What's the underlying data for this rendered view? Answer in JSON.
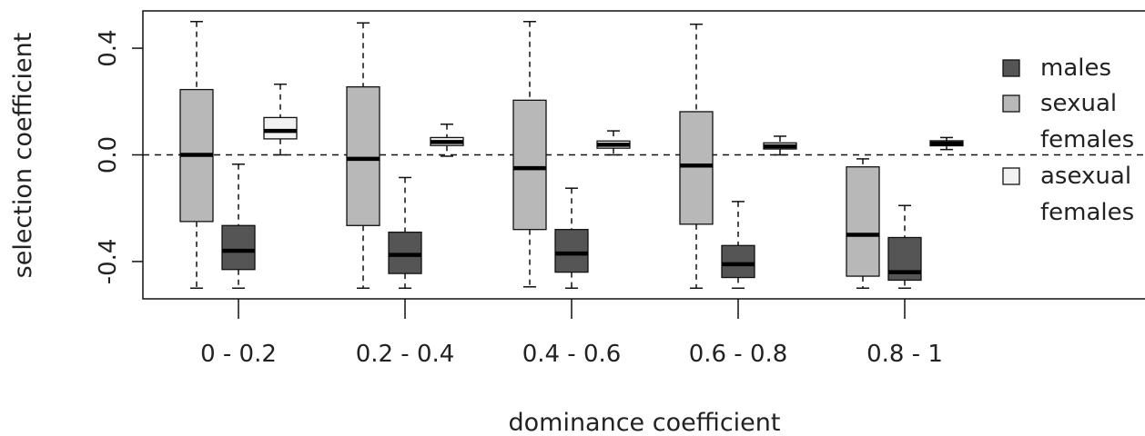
{
  "chart_data": {
    "type": "boxplot",
    "title": "",
    "xlabel": "dominance coefficient",
    "ylabel": "selection coefficient",
    "ylim": [
      -0.54,
      0.54
    ],
    "yticks": [
      {
        "value": 0.4,
        "label": "0.4"
      },
      {
        "value": 0.0,
        "label": "0.0"
      },
      {
        "value": -0.4,
        "label": "-0.4"
      }
    ],
    "reference_line": 0,
    "categories": [
      "0 - 0.2",
      "0.2 - 0.4",
      "0.4 - 0.6",
      "0.6 - 0.8",
      "0.8 - 1"
    ],
    "legend": {
      "position": "right",
      "entries": [
        {
          "key": "sexual_females",
          "lines": [
            "sexual",
            "females"
          ]
        },
        {
          "key": "males",
          "lines": [
            "males"
          ]
        },
        {
          "key": "asexual_females",
          "lines": [
            "asexual",
            "females"
          ]
        }
      ]
    },
    "series": [
      {
        "key": "sexual_females",
        "color": "#b8b8b8",
        "boxes": [
          {
            "whisker_low": -0.5,
            "q1": -0.25,
            "median": 0.0,
            "q3": 0.245,
            "whisker_high": 0.5
          },
          {
            "whisker_low": -0.5,
            "q1": -0.265,
            "median": -0.015,
            "q3": 0.255,
            "whisker_high": 0.495
          },
          {
            "whisker_low": -0.495,
            "q1": -0.28,
            "median": -0.05,
            "q3": 0.205,
            "whisker_high": 0.5
          },
          {
            "whisker_low": -0.5,
            "q1": -0.26,
            "median": -0.04,
            "q3": 0.162,
            "whisker_high": 0.49
          },
          {
            "whisker_low": -0.5,
            "q1": -0.455,
            "median": -0.3,
            "q3": -0.045,
            "whisker_high": -0.015
          }
        ]
      },
      {
        "key": "males",
        "color": "#555555",
        "boxes": [
          {
            "whisker_low": -0.5,
            "q1": -0.43,
            "median": -0.36,
            "q3": -0.265,
            "whisker_high": -0.035
          },
          {
            "whisker_low": -0.5,
            "q1": -0.445,
            "median": -0.375,
            "q3": -0.29,
            "whisker_high": -0.085
          },
          {
            "whisker_low": -0.5,
            "q1": -0.44,
            "median": -0.37,
            "q3": -0.28,
            "whisker_high": -0.125
          },
          {
            "whisker_low": -0.5,
            "q1": -0.46,
            "median": -0.41,
            "q3": -0.34,
            "whisker_high": -0.175
          },
          {
            "whisker_low": -0.5,
            "q1": -0.47,
            "median": -0.44,
            "q3": -0.31,
            "whisker_high": -0.19
          }
        ]
      },
      {
        "key": "asexual_females",
        "color": "#f2f2f2",
        "boxes": [
          {
            "whisker_low": 0.0,
            "q1": 0.06,
            "median": 0.09,
            "q3": 0.14,
            "whisker_high": 0.265
          },
          {
            "whisker_low": -0.005,
            "q1": 0.035,
            "median": 0.048,
            "q3": 0.065,
            "whisker_high": 0.115
          },
          {
            "whisker_low": 0.0,
            "q1": 0.025,
            "median": 0.038,
            "q3": 0.052,
            "whisker_high": 0.09
          },
          {
            "whisker_low": 0.0,
            "q1": 0.022,
            "median": 0.032,
            "q3": 0.045,
            "whisker_high": 0.07
          },
          {
            "whisker_low": 0.02,
            "q1": 0.034,
            "median": 0.043,
            "q3": 0.053,
            "whisker_high": 0.065
          }
        ]
      }
    ]
  }
}
